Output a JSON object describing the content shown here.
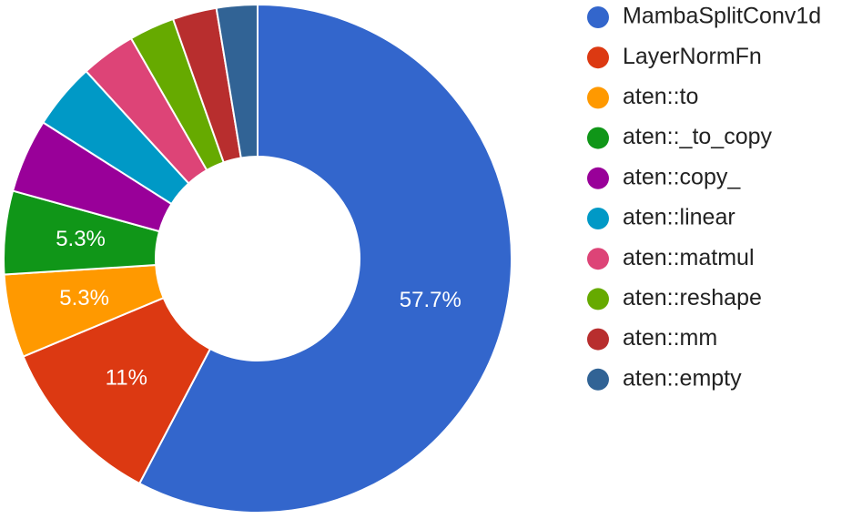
{
  "chart_data": {
    "type": "donut",
    "categories": [
      "MambaSplitConv1d",
      "LayerNormFn",
      "aten::to",
      "aten::_to_copy",
      "aten::copy_",
      "aten::linear",
      "aten::matmul",
      "aten::reshape",
      "aten::mm",
      "aten::empty"
    ],
    "values": [
      57.7,
      11,
      5.3,
      5.3,
      4.7,
      4.2,
      3.5,
      2.9,
      2.8,
      2.6
    ],
    "value_labels": [
      "57.7%",
      "11%",
      "5.3%",
      "5.3%",
      null,
      null,
      null,
      null,
      null,
      null
    ],
    "colors": [
      "#3366cc",
      "#dc3912",
      "#ff9900",
      "#109618",
      "#990099",
      "#0099c6",
      "#dd4477",
      "#66aa00",
      "#b82e2e",
      "#316395"
    ],
    "legend": "right"
  }
}
